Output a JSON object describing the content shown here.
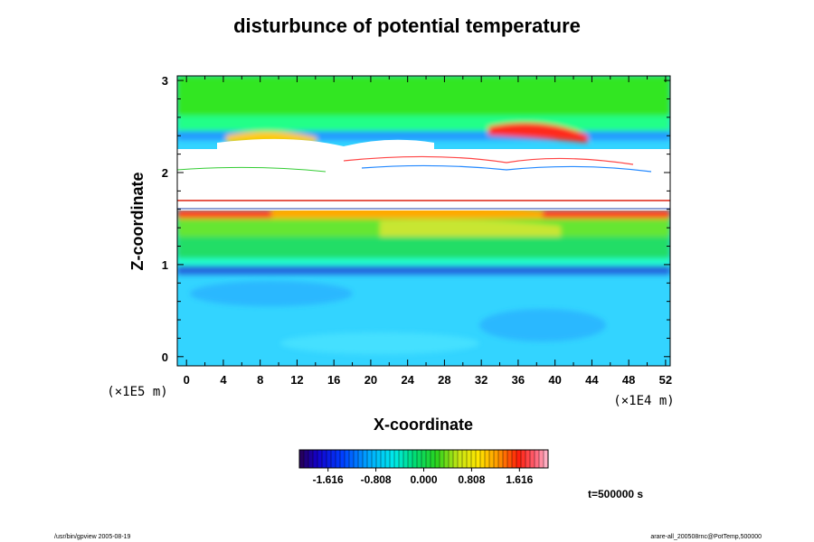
{
  "chart_data": {
    "type": "heatmap",
    "title": "disturbunce of potential temperature",
    "xlabel": "X-coordinate",
    "ylabel": "Z-coordinate",
    "x_unit": "(×1E4 m)",
    "y_unit": "(×1E5 m)",
    "xlim": [
      -1,
      52.5
    ],
    "ylim": [
      -0.1,
      3.05
    ],
    "x_ticks": [
      "0",
      "4",
      "8",
      "12",
      "16",
      "20",
      "24",
      "28",
      "32",
      "36",
      "40",
      "44",
      "48",
      "52"
    ],
    "y_ticks": [
      "0",
      "1",
      "2",
      "3"
    ],
    "colorbar": {
      "ticks": [
        "-1.616",
        "-0.808",
        "0.000",
        "0.808",
        "1.616"
      ],
      "range": [
        -2.1,
        2.1
      ]
    },
    "annotation": "t=500000 s",
    "footer_left": "/usr/bin/gpview 2005-08-19",
    "footer_right": "arare-all_200508rnc@PotTemp,500000"
  }
}
